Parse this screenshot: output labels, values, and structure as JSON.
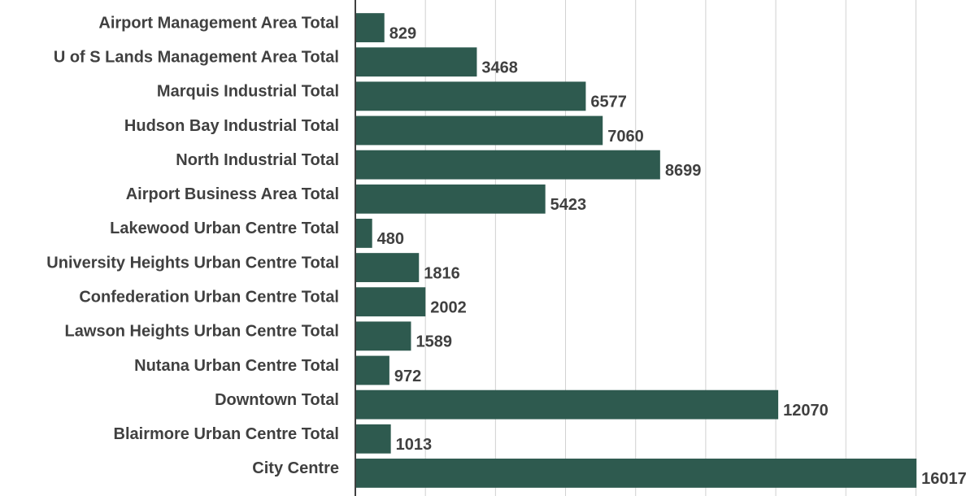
{
  "chart_data": {
    "type": "barh",
    "categories": [
      "Airport Management Area Total",
      "U of S Lands Management Area Total",
      "Marquis Industrial Total",
      "Hudson Bay Industrial Total",
      "North Industrial Total",
      "Airport Business Area Total",
      "Lakewood Urban Centre Total",
      "University Heights Urban Centre Total",
      "Confederation Urban Centre Total",
      "Lawson Heights Urban Centre Total",
      "Nutana Urban Centre Total",
      "Downtown Total",
      "Blairmore Urban Centre Total",
      "City Centre"
    ],
    "values": [
      829,
      3468,
      6577,
      7060,
      8699,
      5423,
      480,
      1816,
      2002,
      1589,
      972,
      12070,
      1013,
      16017
    ],
    "color": "#2e5a4f",
    "xlim": [
      0,
      17800
    ],
    "xticks": [
      2000,
      4000,
      6000,
      8000,
      10000,
      12000,
      14000,
      16000
    ],
    "grid": true
  }
}
